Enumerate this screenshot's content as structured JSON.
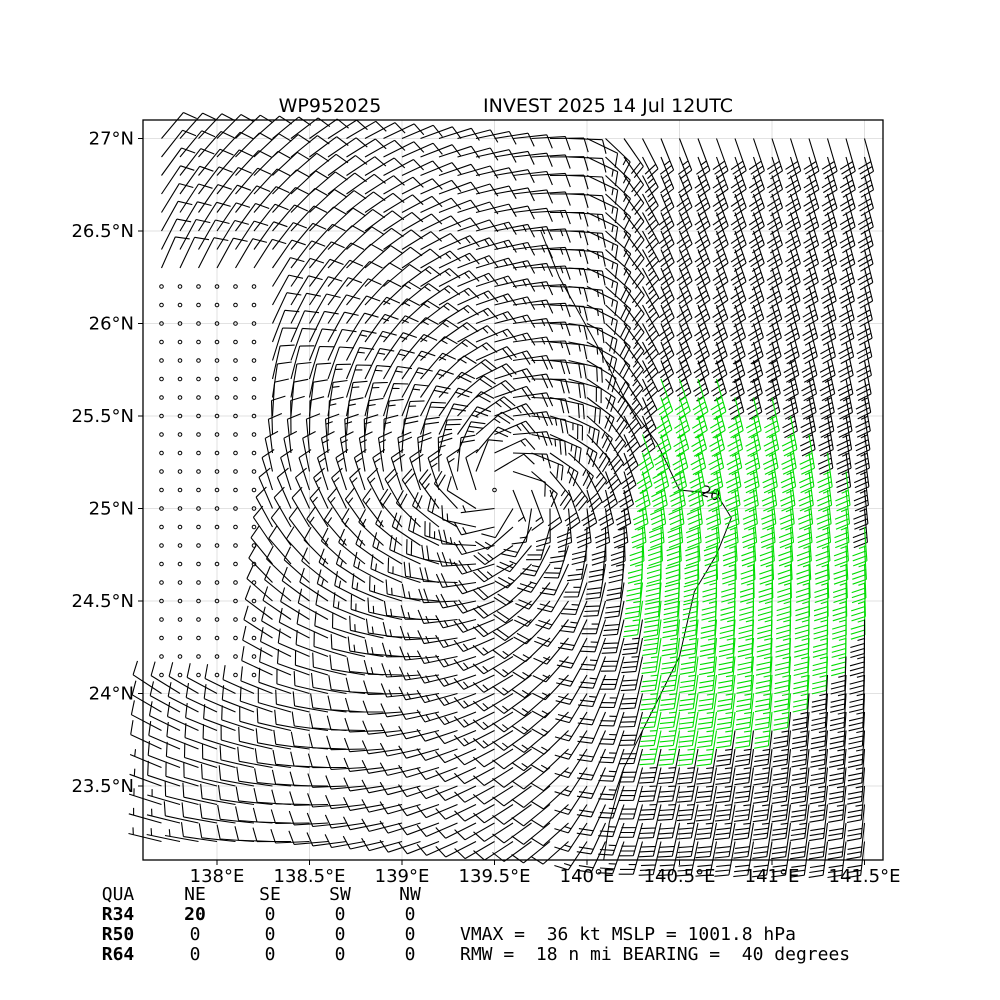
{
  "chart_data": {
    "type": "wind-barb-map",
    "title_left": "WP952025",
    "title_right": "INVEST 2025 14 Jul 12UTC",
    "x_ticks": [
      "138°E",
      "138.5°E",
      "139°E",
      "139.5°E",
      "140°E",
      "140.5°E",
      "141°E",
      "141.5°E"
    ],
    "x_tick_values": [
      138,
      138.5,
      139,
      139.5,
      140,
      140.5,
      141,
      141.5
    ],
    "y_ticks": [
      "27°N",
      "26.5°N",
      "26°N",
      "25.5°N",
      "25°N",
      "24.5°N",
      "24°N",
      "23.5°N"
    ],
    "y_tick_values": [
      27,
      26.5,
      26,
      25.5,
      25,
      24.5,
      24,
      23.5
    ],
    "xlim": [
      137.6,
      141.6
    ],
    "ylim": [
      23.1,
      27.1
    ],
    "grid": true,
    "contour_label": "20",
    "center": {
      "lon": 139.55,
      "lat": 25.1
    },
    "barb_colors": {
      "normal": "#000000",
      "gale": "#00dd00"
    },
    "radii_table": {
      "header": [
        "QUA",
        "NE",
        "SE",
        "SW",
        "NW"
      ],
      "rows": [
        [
          "R34",
          "20",
          "0",
          "0",
          "0"
        ],
        [
          "R50",
          "0",
          "0",
          "0",
          "0"
        ],
        [
          "R64",
          "0",
          "0",
          "0",
          "0"
        ]
      ]
    },
    "info_line1": "VMAX =  36 kt MSLP = 1001.8 hPa",
    "info_line2": "RMW =  18 n mi BEARING =  40 degrees"
  }
}
